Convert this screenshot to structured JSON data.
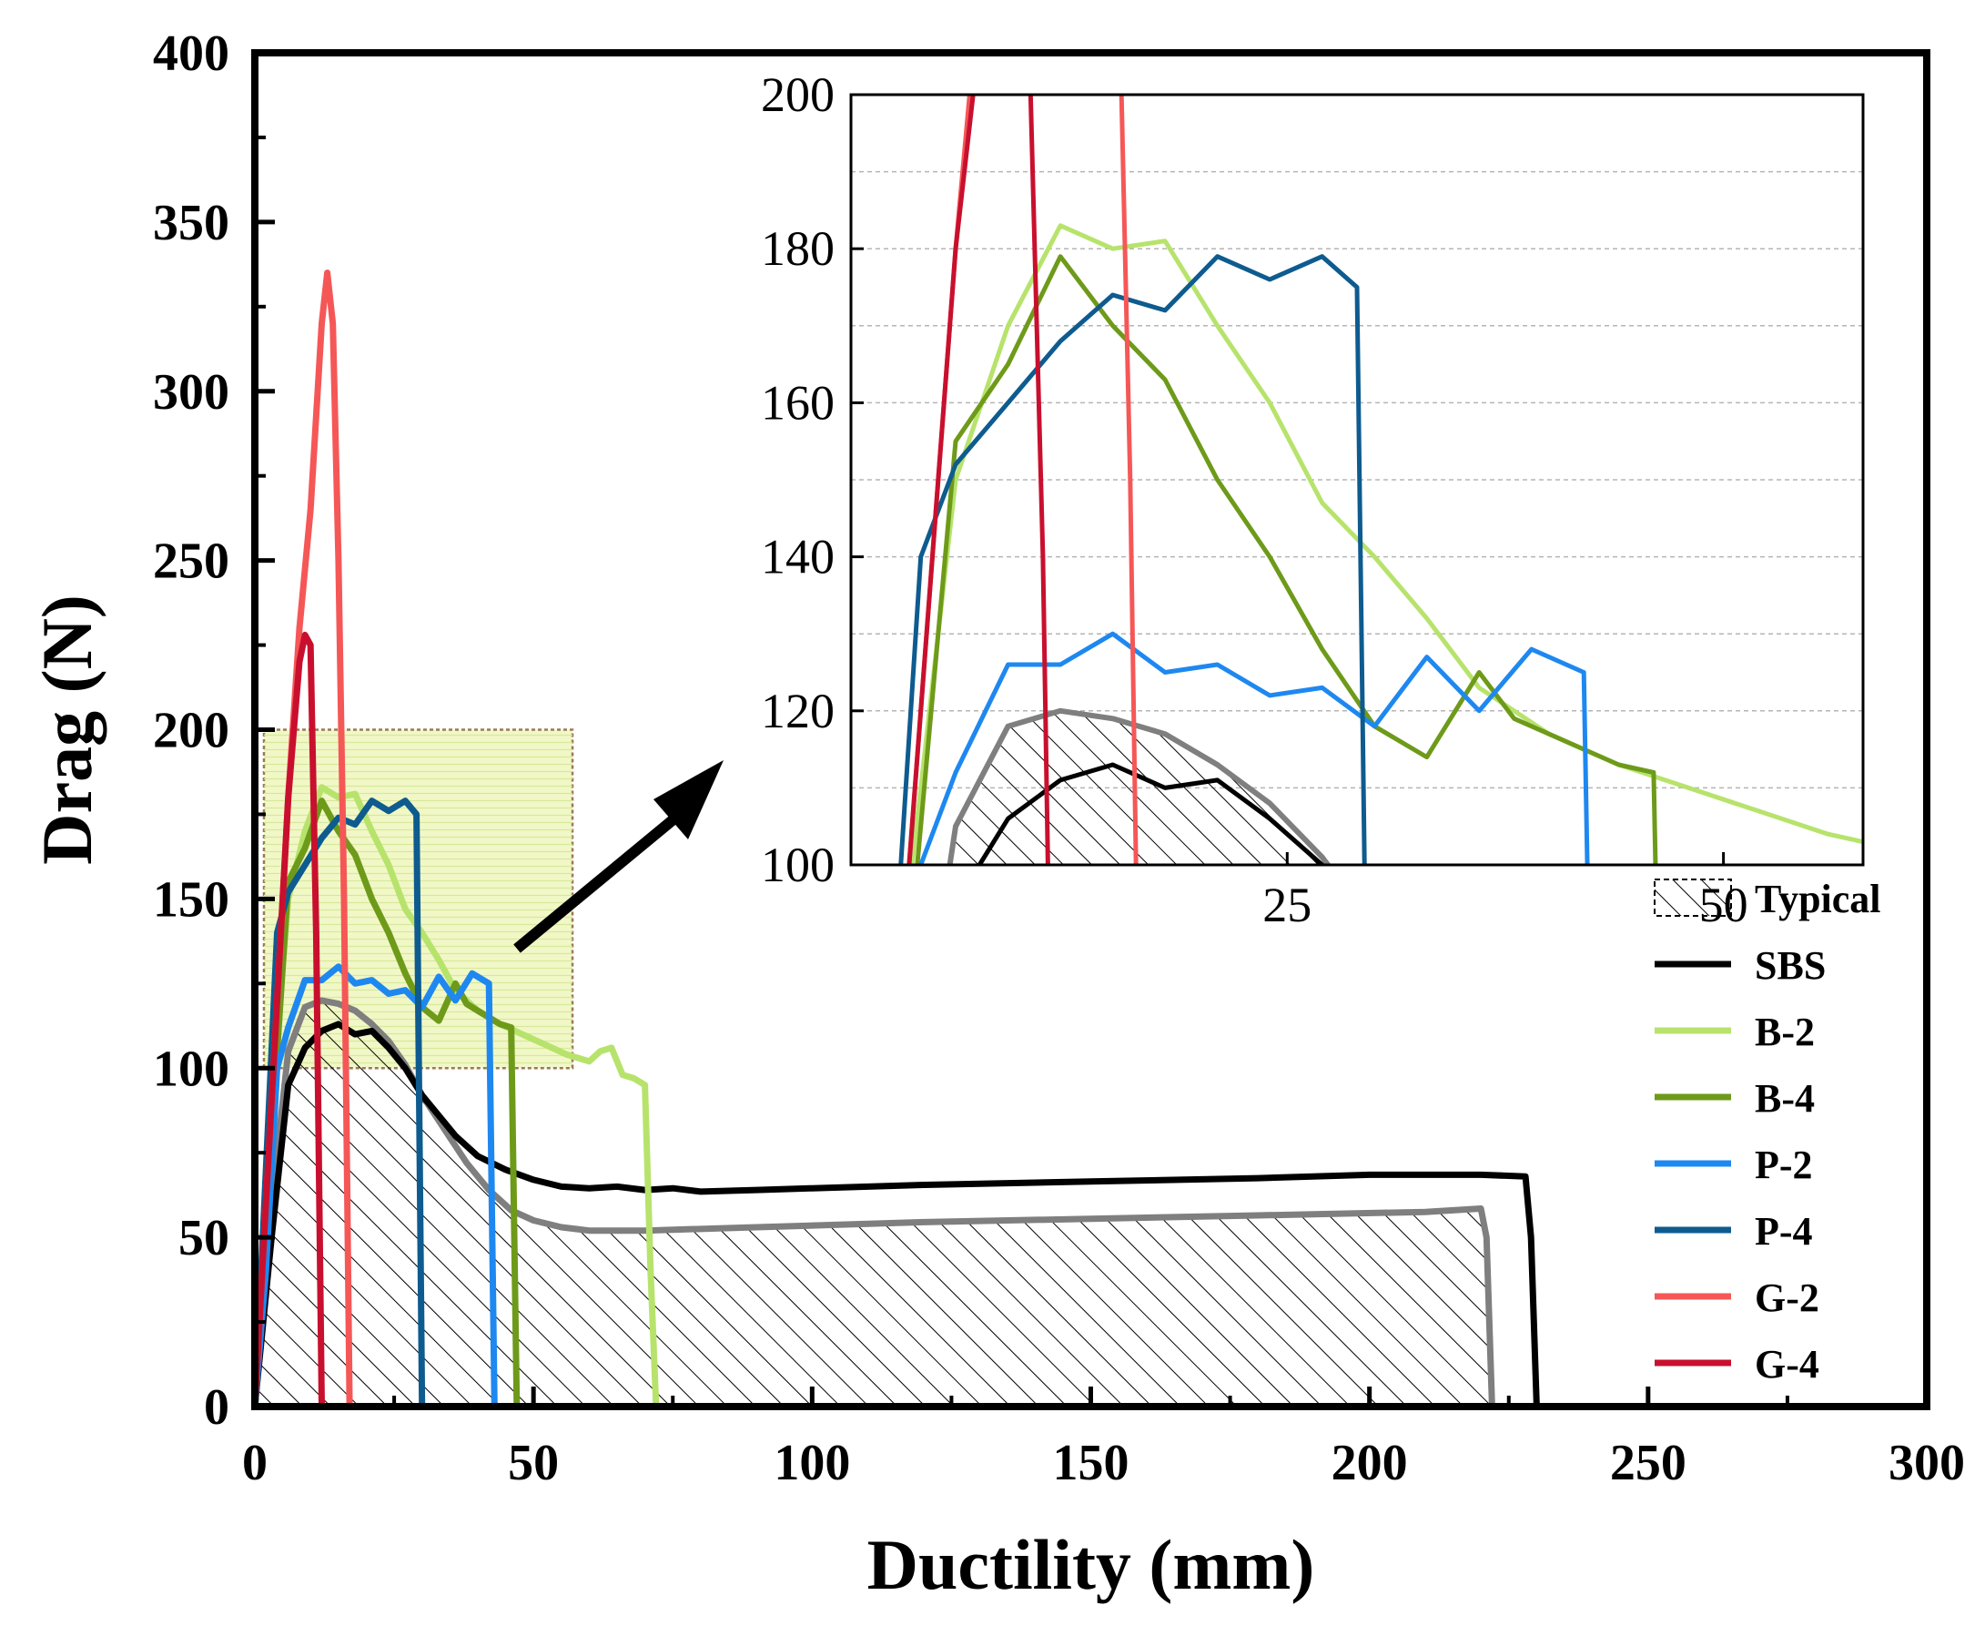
{
  "chart_data": {
    "type": "line",
    "xlabel": "Ductility (mm)",
    "ylabel": "Drag (N)",
    "xlim": [
      0,
      300
    ],
    "ylim": [
      0,
      400
    ],
    "xticks": [
      0,
      50,
      100,
      150,
      200,
      250,
      300
    ],
    "yticks": [
      0,
      50,
      100,
      150,
      200,
      250,
      300,
      350,
      400
    ],
    "highlight_region": {
      "x": [
        0,
        57
      ],
      "y": [
        100,
        200
      ]
    },
    "typical_area_series": "Typical",
    "series": [
      {
        "name": "Typical",
        "color": "#7f7f7f",
        "style": "hatched-area",
        "x": [
          0,
          3,
          6,
          9,
          12,
          15,
          18,
          21,
          24,
          27,
          30,
          34,
          38,
          42,
          46,
          50,
          55,
          60,
          70,
          90,
          120,
          150,
          180,
          210,
          220,
          221,
          222
        ],
        "y": [
          0,
          60,
          105,
          118,
          120,
          119,
          117,
          113,
          108,
          101,
          92,
          82,
          72,
          64,
          58,
          55,
          53,
          52,
          52,
          53,
          54.5,
          55.5,
          56.5,
          57.5,
          58.5,
          50,
          0
        ]
      },
      {
        "name": "SBS",
        "color": "#000000",
        "x": [
          0,
          3,
          6,
          9,
          12,
          15,
          18,
          21,
          24,
          27,
          30,
          33,
          36,
          40,
          45,
          50,
          55,
          60,
          65,
          70,
          75,
          80,
          90,
          100,
          120,
          150,
          180,
          200,
          220,
          228,
          229,
          230
        ],
        "y": [
          0,
          50,
          95,
          106,
          111,
          113,
          110,
          111,
          106,
          100,
          92,
          86,
          80,
          74,
          70,
          67,
          65,
          64.5,
          65,
          64,
          64.5,
          63.5,
          64,
          64.5,
          65.5,
          66.5,
          67.5,
          68.5,
          68.5,
          68,
          50,
          0
        ]
      },
      {
        "name": "B-2",
        "color": "#b7e36c",
        "x": [
          0,
          3,
          6,
          9,
          12,
          15,
          18,
          21,
          24,
          27,
          30,
          33,
          36,
          40,
          44,
          48,
          52,
          56,
          60,
          62,
          64,
          66,
          68,
          70,
          71,
          72
        ],
        "y": [
          0,
          90,
          150,
          170,
          183,
          180,
          181,
          170,
          160,
          147,
          140,
          132,
          123,
          117,
          113,
          110,
          107,
          104,
          102,
          105,
          106,
          98,
          97,
          95,
          40,
          0
        ]
      },
      {
        "name": "B-4",
        "color": "#6e9a1a",
        "x": [
          0,
          3,
          6,
          9,
          12,
          15,
          18,
          21,
          24,
          27,
          30,
          33,
          36,
          38,
          40,
          44,
          46,
          47
        ],
        "y": [
          0,
          80,
          155,
          165,
          179,
          170,
          163,
          150,
          140,
          128,
          118,
          114,
          125,
          119,
          117,
          113,
          112,
          0
        ]
      },
      {
        "name": "P-2",
        "color": "#1e88f0",
        "x": [
          0,
          2,
          4,
          6,
          9,
          12,
          15,
          18,
          21,
          24,
          27,
          30,
          33,
          36,
          39,
          42,
          43
        ],
        "y": [
          0,
          40,
          100,
          112,
          126,
          126,
          130,
          125,
          126,
          122,
          123,
          118,
          127,
          120,
          128,
          125,
          0
        ]
      },
      {
        "name": "P-4",
        "color": "#0e5b8f",
        "x": [
          0,
          2,
          4,
          6,
          9,
          12,
          15,
          18,
          21,
          24,
          27,
          29,
          30
        ],
        "y": [
          0,
          70,
          140,
          152,
          160,
          168,
          174,
          172,
          179,
          176,
          179,
          175,
          0
        ]
      },
      {
        "name": "G-2",
        "color": "#f55757",
        "x": [
          0,
          2,
          4,
          6,
          8,
          10,
          12,
          13,
          14,
          15,
          16,
          17
        ],
        "y": [
          0,
          60,
          120,
          180,
          230,
          265,
          320,
          335,
          320,
          250,
          150,
          0
        ]
      },
      {
        "name": "G-4",
        "color": "#c8102e",
        "x": [
          0,
          2,
          4,
          6,
          8,
          9,
          10,
          11,
          12
        ],
        "y": [
          0,
          60,
          120,
          180,
          220,
          228,
          225,
          140,
          0
        ]
      }
    ],
    "inset": {
      "xlim": [
        0,
        58
      ],
      "ylim": [
        100,
        200
      ],
      "xticks": [
        25,
        50
      ],
      "yticks": [
        100,
        120,
        140,
        160,
        180,
        200
      ]
    },
    "legend": {
      "placement": "bottom-right",
      "entries": [
        "Typical",
        "SBS",
        "B-2",
        "B-4",
        "P-2",
        "P-4",
        "G-2",
        "G-4"
      ]
    }
  }
}
